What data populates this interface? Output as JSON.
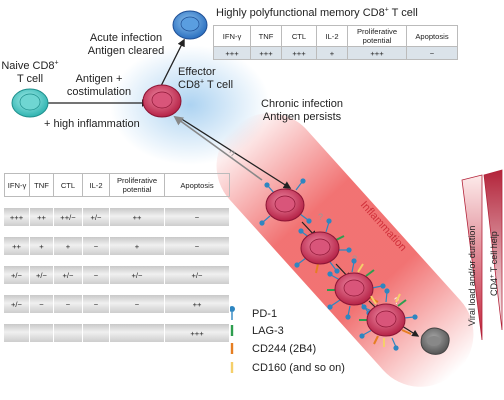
{
  "labels": {
    "naive": [
      "Naive CD8",
      "+",
      "T cell"
    ],
    "antigen_costim": [
      "Antigen +",
      "costimulation"
    ],
    "high_inflammation": "+ high inflammation",
    "acute": [
      "Acute infection",
      "Antigen cleared"
    ],
    "effector": [
      "Effector",
      "CD8",
      "+",
      " T cell"
    ],
    "memory_title": [
      "Highly polyfunctional memory CD8",
      "+",
      " T cell"
    ],
    "chronic": [
      "Chronic infection",
      "Antigen persists"
    ],
    "question": "?",
    "inflammation": "Inflammation",
    "viral_load": "Viral load and/or duration",
    "cd4_help": [
      "CD4",
      "+",
      " T cell help"
    ]
  },
  "memory_table": {
    "headers": [
      "IFN-γ",
      "TNF",
      "CTL",
      "IL-2",
      "Proliferative potential",
      "Apoptosis"
    ],
    "values": [
      "+++",
      "+++",
      "+++",
      "+",
      "+++",
      "−"
    ]
  },
  "exhaustion_table": {
    "headers": [
      "IFN-γ",
      "TNF",
      "CTL",
      "IL-2",
      "Proliferative potential",
      "Apoptosis"
    ],
    "rows": [
      [
        "+++",
        "++",
        "++/−",
        "+/−",
        "++",
        "−"
      ],
      [
        "++",
        "+",
        "+",
        "−",
        "+",
        "−"
      ],
      [
        "+/−",
        "+/−",
        "+/−",
        "−",
        "+/−",
        "+/−"
      ],
      [
        "+/−",
        "−",
        "−",
        "−",
        "−",
        "++"
      ],
      [
        "",
        "",
        "",
        "",
        "",
        "+++"
      ]
    ]
  },
  "legend": [
    {
      "label": "PD-1",
      "color": "#2e86c1",
      "icon": "lollipop-receptor-icon"
    },
    {
      "label": "LAG-3",
      "color": "#2e9e4f",
      "icon": "bar-receptor-icon"
    },
    {
      "label": "CD244 (2B4)",
      "color": "#e67e22",
      "icon": "bar-receptor-icon"
    },
    {
      "label": "CD160 (and so on)",
      "color": "#f5cf6a",
      "icon": "bar-receptor-icon"
    }
  ]
}
